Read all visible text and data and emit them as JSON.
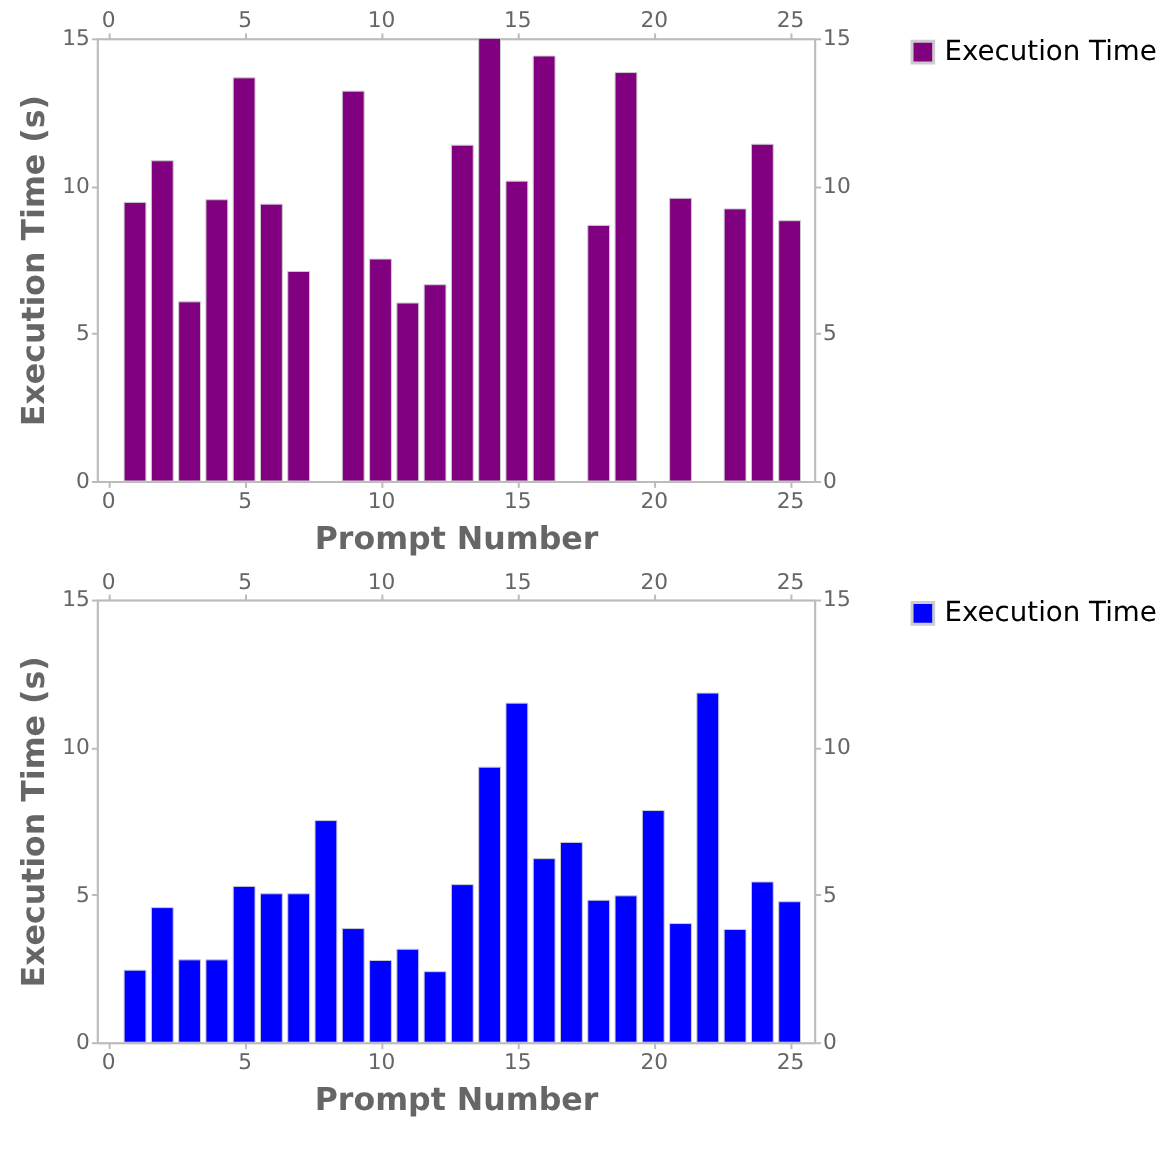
{
  "chart_data": [
    {
      "type": "bar",
      "xlabel": "Prompt Number",
      "ylabel": "Execution Time (s)",
      "x": [
        1,
        2,
        3,
        4,
        5,
        6,
        7,
        8,
        9,
        10,
        11,
        12,
        13,
        14,
        15,
        16,
        17,
        18,
        19,
        20,
        21,
        22,
        23,
        24,
        25
      ],
      "series": [
        {
          "name": "Execution Time",
          "color": "#800080",
          "values": [
            9.44,
            10.85,
            6.07,
            9.53,
            13.66,
            9.38,
            7.1,
            null,
            13.21,
            7.52,
            6.03,
            6.65,
            11.38,
            15.0,
            10.16,
            14.4,
            null,
            8.66,
            13.84,
            null,
            9.58,
            null,
            9.22,
            11.41,
            8.82
          ]
        }
      ],
      "xlim": [
        -0.4,
        25.9
      ],
      "xticks": [
        0,
        5,
        10,
        15,
        20,
        25
      ],
      "x2lim": [
        -0.4,
        25.9
      ],
      "x2ticks": [
        0,
        5,
        10,
        15,
        20,
        25
      ],
      "ylim": [
        0,
        15
      ],
      "yticks": [
        0,
        5,
        10,
        15
      ],
      "y2lim": [
        0,
        15
      ],
      "y2ticks": [
        0,
        5,
        10,
        15
      ],
      "grid": false,
      "legend": "right"
    },
    {
      "type": "bar",
      "xlabel": "Prompt Number",
      "ylabel": "Execution Time (s)",
      "x": [
        1,
        2,
        3,
        4,
        5,
        6,
        7,
        8,
        9,
        10,
        11,
        12,
        13,
        14,
        15,
        16,
        17,
        18,
        19,
        20,
        21,
        22,
        23,
        24,
        25
      ],
      "series": [
        {
          "name": "Execution Time",
          "color": "#0000ff",
          "values": [
            2.44,
            4.56,
            2.79,
            2.79,
            5.28,
            5.03,
            5.03,
            7.51,
            3.85,
            2.77,
            3.15,
            2.39,
            5.34,
            9.32,
            11.49,
            6.22,
            6.77,
            4.81,
            4.96,
            7.85,
            4.02,
            11.83,
            3.82,
            5.43,
            4.76
          ]
        }
      ],
      "xlim": [
        -0.4,
        25.9
      ],
      "xticks": [
        0,
        5,
        10,
        15,
        20,
        25
      ],
      "x2lim": [
        -0.4,
        25.9
      ],
      "x2ticks": [
        0,
        5,
        10,
        15,
        20,
        25
      ],
      "ylim": [
        0,
        15
      ],
      "yticks": [
        0,
        5,
        10,
        15
      ],
      "y2lim": [
        0,
        15
      ],
      "y2ticks": [
        0,
        5,
        10,
        15
      ],
      "grid": false,
      "legend": "right"
    }
  ]
}
